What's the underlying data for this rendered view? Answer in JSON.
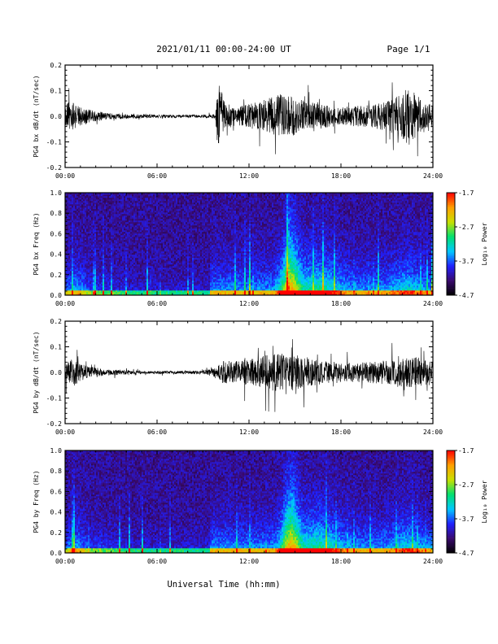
{
  "header": {
    "date_title": "2021/01/11  00:00-24:00 UT",
    "page": "Page 1/1"
  },
  "chart_data": [
    {
      "type": "line",
      "name": "bx-waveform",
      "ylabel": "PG4 bx dB/dt (nT/sec)",
      "xlim": [
        0,
        24
      ],
      "ylim": [
        -0.2,
        0.2
      ],
      "x_ticks": [
        "00:00",
        "06:00",
        "12:00",
        "18:00",
        "24:00"
      ],
      "y_ticks": [
        "-0.2",
        "-0.1",
        "0.0",
        "0.1",
        "0.2"
      ],
      "amplitude_envelope": {
        "hours": [
          0,
          0.3,
          1,
          2,
          3,
          5,
          7,
          9,
          9.8,
          9.95,
          10.05,
          10.4,
          11,
          12,
          13,
          14,
          15,
          16,
          17,
          18,
          19,
          20,
          21,
          22,
          22.5,
          23,
          24
        ],
        "amplitude": [
          0.045,
          0.065,
          0.038,
          0.022,
          0.012,
          0.007,
          0.006,
          0.006,
          0.01,
          0.16,
          0.14,
          0.06,
          0.04,
          0.05,
          0.07,
          0.09,
          0.08,
          0.06,
          0.05,
          0.04,
          0.045,
          0.05,
          0.06,
          0.1,
          0.13,
          0.08,
          0.05
        ]
      }
    },
    {
      "type": "heatmap",
      "name": "bx-spectrogram",
      "ylabel": "PG4 bx Freq (Hz)",
      "xlim": [
        0,
        24
      ],
      "ylim": [
        0.0,
        1.0
      ],
      "x_ticks": [
        "00:00",
        "06:00",
        "12:00",
        "18:00",
        "24:00"
      ],
      "y_ticks": [
        "0.0",
        "0.2",
        "0.4",
        "0.6",
        "0.8",
        "1.0"
      ],
      "colorbar": {
        "label": "Log₁₀ Power",
        "range": [
          -4.7,
          -1.7
        ],
        "ticks": [
          "-1.7",
          "-2.7",
          "-3.7",
          "-4.7"
        ],
        "colors": [
          "#000000",
          "#3a0a6e",
          "#2020ff",
          "#00c8ff",
          "#00e070",
          "#c8e000",
          "#ffa000",
          "#ff0000"
        ]
      }
    },
    {
      "type": "line",
      "name": "by-waveform",
      "ylabel": "PG4 by dB/dt (nT/sec)",
      "xlim": [
        0,
        24
      ],
      "ylim": [
        -0.2,
        0.2
      ],
      "x_ticks": [
        "00:00",
        "06:00",
        "12:00",
        "18:00",
        "24:00"
      ],
      "y_ticks": [
        "-0.2",
        "-0.1",
        "0.0",
        "0.1",
        "0.2"
      ],
      "amplitude_envelope": {
        "hours": [
          0,
          0.5,
          1,
          2,
          3,
          5,
          7,
          9,
          9.9,
          10.2,
          11,
          12,
          13,
          14,
          15,
          16,
          17,
          18,
          19,
          20,
          21,
          22,
          23,
          24
        ],
        "amplitude": [
          0.04,
          0.06,
          0.035,
          0.02,
          0.012,
          0.006,
          0.006,
          0.008,
          0.02,
          0.045,
          0.05,
          0.055,
          0.07,
          0.08,
          0.075,
          0.06,
          0.045,
          0.04,
          0.04,
          0.045,
          0.05,
          0.06,
          0.065,
          0.05
        ]
      }
    },
    {
      "type": "heatmap",
      "name": "by-spectrogram",
      "ylabel": "PG4 by Freq (Hz)",
      "xlim": [
        0,
        24
      ],
      "ylim": [
        0.0,
        1.0
      ],
      "x_ticks": [
        "00:00",
        "06:00",
        "12:00",
        "18:00",
        "24:00"
      ],
      "y_ticks": [
        "0.0",
        "0.2",
        "0.4",
        "0.6",
        "0.8",
        "1.0"
      ],
      "colorbar": {
        "label": "Log₁₀ Power",
        "range": [
          -4.7,
          -1.7
        ],
        "ticks": [
          "-1.7",
          "-2.7",
          "-3.7",
          "-4.7"
        ],
        "colors": [
          "#000000",
          "#3a0a6e",
          "#2020ff",
          "#00c8ff",
          "#00e070",
          "#c8e000",
          "#ffa000",
          "#ff0000"
        ]
      }
    }
  ],
  "footer": {
    "xlabel": "Universal Time (hh:mm)"
  }
}
